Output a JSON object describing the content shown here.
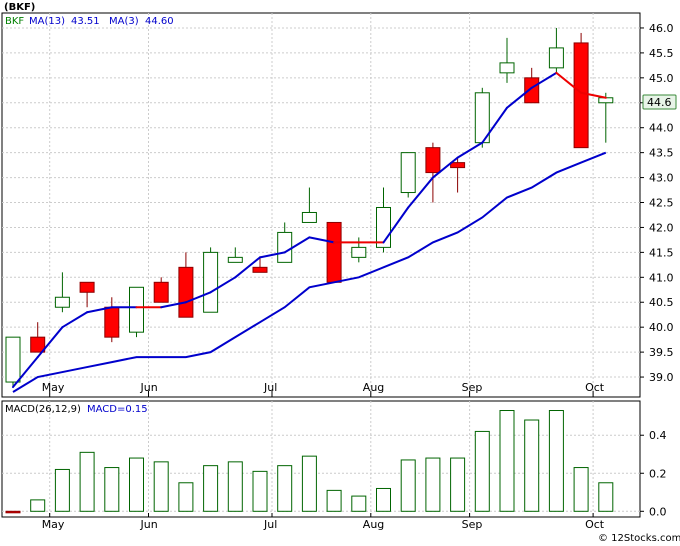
{
  "chart_data": [
    {
      "type": "candlestick",
      "ticker": "(BKF)",
      "legend": [
        {
          "label": "BKF",
          "value": "",
          "color": "#008000"
        },
        {
          "label": "MA(13)",
          "value": "43.51",
          "color": "#0000cc"
        },
        {
          "label": "MA(3)",
          "value": "44.60",
          "color": "#0000cc"
        }
      ],
      "last_price_label": "44.6",
      "ylim": [
        38.6,
        46.3
      ],
      "yticks": [
        "39.0",
        "39.5",
        "40.0",
        "40.5",
        "41.0",
        "41.5",
        "42.0",
        "42.5",
        "43.0",
        "43.5",
        "44.0",
        "44.5",
        "45.0",
        "45.5",
        "46.0"
      ],
      "xticks": [
        {
          "label": "May",
          "index": 1
        },
        {
          "label": "Jun",
          "index": 5
        },
        {
          "label": "Jul",
          "index": 10
        },
        {
          "label": "Aug",
          "index": 14
        },
        {
          "label": "Sep",
          "index": 18
        },
        {
          "label": "Oct",
          "index": 23
        }
      ],
      "candles": [
        {
          "open": 38.9,
          "high": 39.8,
          "low": 38.8,
          "close": 39.8
        },
        {
          "open": 39.8,
          "high": 40.1,
          "low": 39.5,
          "close": 39.5
        },
        {
          "open": 40.4,
          "high": 41.1,
          "low": 40.3,
          "close": 40.6
        },
        {
          "open": 40.9,
          "high": 40.9,
          "low": 40.4,
          "close": 40.7
        },
        {
          "open": 40.4,
          "high": 40.6,
          "low": 39.7,
          "close": 39.8
        },
        {
          "open": 39.9,
          "high": 40.8,
          "low": 39.8,
          "close": 40.8
        },
        {
          "open": 40.9,
          "high": 41.0,
          "low": 40.5,
          "close": 40.5
        },
        {
          "open": 41.2,
          "high": 41.5,
          "low": 40.2,
          "close": 40.2
        },
        {
          "open": 40.3,
          "high": 41.6,
          "low": 40.3,
          "close": 41.5
        },
        {
          "open": 41.3,
          "high": 41.6,
          "low": 41.3,
          "close": 41.4
        },
        {
          "open": 41.2,
          "high": 41.4,
          "low": 41.1,
          "close": 41.1
        },
        {
          "open": 41.3,
          "high": 42.1,
          "low": 41.3,
          "close": 41.9
        },
        {
          "open": 42.1,
          "high": 42.8,
          "low": 42.1,
          "close": 42.3
        },
        {
          "open": 42.1,
          "high": 42.1,
          "low": 40.9,
          "close": 40.9
        },
        {
          "open": 41.4,
          "high": 41.8,
          "low": 41.3,
          "close": 41.6
        },
        {
          "open": 41.6,
          "high": 42.8,
          "low": 41.5,
          "close": 42.4
        },
        {
          "open": 42.7,
          "high": 43.5,
          "low": 42.6,
          "close": 43.5
        },
        {
          "open": 43.6,
          "high": 43.7,
          "low": 42.5,
          "close": 43.1
        },
        {
          "open": 43.3,
          "high": 43.4,
          "low": 42.7,
          "close": 43.2
        },
        {
          "open": 43.7,
          "high": 44.8,
          "low": 43.6,
          "close": 44.7
        },
        {
          "open": 45.1,
          "high": 45.8,
          "low": 44.9,
          "close": 45.3
        },
        {
          "open": 45.0,
          "high": 45.2,
          "low": 44.5,
          "close": 44.5
        },
        {
          "open": 45.2,
          "high": 46.0,
          "low": 45.1,
          "close": 45.6
        },
        {
          "open": 45.7,
          "high": 45.9,
          "low": 43.6,
          "close": 43.6
        },
        {
          "open": 44.5,
          "high": 44.7,
          "low": 43.7,
          "close": 44.6
        }
      ],
      "ma13": [
        38.7,
        39.0,
        39.1,
        39.2,
        39.3,
        39.4,
        39.4,
        39.4,
        39.5,
        39.8,
        40.1,
        40.4,
        40.8,
        40.9,
        41.0,
        41.2,
        41.4,
        41.7,
        41.9,
        42.2,
        42.6,
        42.8,
        43.1,
        43.3,
        43.5
      ],
      "ma3": [
        38.8,
        39.4,
        40.0,
        40.3,
        40.4,
        40.4,
        40.4,
        40.5,
        40.7,
        41.0,
        41.4,
        41.5,
        41.8,
        41.7,
        41.7,
        41.7,
        42.4,
        43.0,
        43.4,
        43.7,
        44.4,
        44.8,
        45.1,
        44.7,
        44.6
      ],
      "ma3_down_indices": [
        5,
        13,
        14,
        22,
        23
      ]
    },
    {
      "type": "bar",
      "title": "MACD(26,12,9)",
      "value_label": "MACD=0.15",
      "ylim": [
        -0.03,
        0.58
      ],
      "yticks": [
        "0.0",
        "0.2",
        "0.4"
      ],
      "xticks": [
        {
          "label": "May",
          "index": 1
        },
        {
          "label": "Jun",
          "index": 5
        },
        {
          "label": "Jul",
          "index": 10
        },
        {
          "label": "Aug",
          "index": 14
        },
        {
          "label": "Sep",
          "index": 18
        },
        {
          "label": "Oct",
          "index": 23
        }
      ],
      "values": [
        0.0,
        0.06,
        0.22,
        0.31,
        0.23,
        0.28,
        0.26,
        0.15,
        0.24,
        0.26,
        0.21,
        0.24,
        0.29,
        0.11,
        0.08,
        0.12,
        0.27,
        0.28,
        0.28,
        0.42,
        0.53,
        0.48,
        0.53,
        0.23,
        0.15
      ],
      "negative_indices": [
        0
      ]
    }
  ],
  "credit": "© 12Stocks.com",
  "colors": {
    "up_fill": "#ffffff",
    "up_stroke": "#006400",
    "down_fill": "#ff0000",
    "down_stroke": "#8b0000",
    "ma13": "#0000cc",
    "ma3": "#0000cc",
    "ma3_down": "#ee0000",
    "macd_bar": "#006400"
  }
}
